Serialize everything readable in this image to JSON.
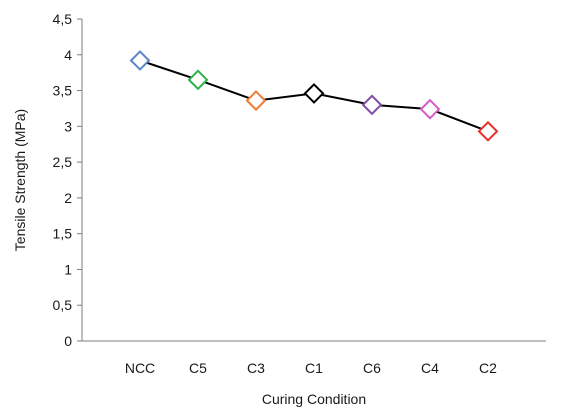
{
  "chart_data": {
    "type": "line",
    "title": "",
    "xlabel": "Curing Condition",
    "ylabel": "Tensile Strength (MPa)",
    "categories": [
      "NCC",
      "C5",
      "C3",
      "C1",
      "C6",
      "C4",
      "C2"
    ],
    "y_ticks": [
      "0",
      "0,5",
      "1",
      "1,5",
      "2",
      "2,5",
      "3",
      "3,5",
      "4",
      "4,5"
    ],
    "ylim": [
      0,
      4.5
    ],
    "grid": false,
    "legend": "none",
    "series": [
      {
        "values": [
          3.92,
          3.65,
          3.36,
          3.46,
          3.3,
          3.24,
          2.93
        ],
        "line_color": "#000000",
        "marker": "diamond-open",
        "marker_colors": [
          "#5B86C5",
          "#2BB34A",
          "#ED7D31",
          "#000000",
          "#7F4FA8",
          "#D65BC9",
          "#E8312A"
        ]
      }
    ]
  }
}
